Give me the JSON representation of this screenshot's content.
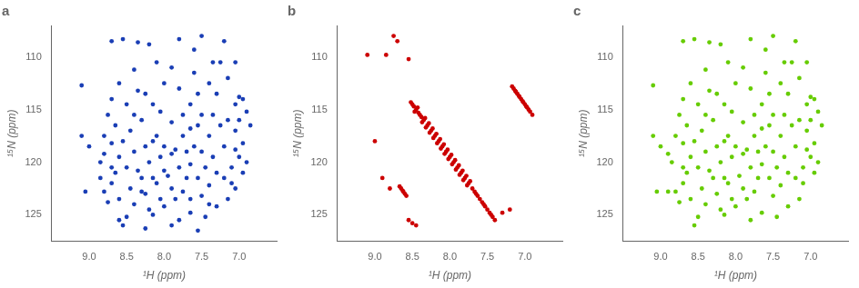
{
  "chart_data": [
    {
      "type": "scatter",
      "title": "a",
      "x_label": "¹H (ppm)",
      "y_label": "¹⁵N (ppm)",
      "color": "#1a3eb5",
      "marker": "circle",
      "grid": false,
      "xlim": [
        9.5,
        6.5
      ],
      "ylim": [
        127.5,
        107.0
      ],
      "xticks": [
        {
          "value": 9.0,
          "label": "9.0"
        },
        8.5,
        {
          "value": 8.0,
          "label": "8.0"
        },
        7.5,
        {
          "value": 7.0,
          "label": "7.0"
        }
      ],
      "yticks": [
        110,
        115,
        120,
        125
      ],
      "x": [
        9.1,
        9.1,
        9.05,
        9.0,
        8.85,
        8.85,
        8.8,
        8.8,
        8.8,
        8.75,
        8.75,
        8.7,
        8.7,
        8.7,
        8.7,
        8.7,
        8.65,
        8.65,
        8.6,
        8.6,
        8.6,
        8.6,
        8.55,
        8.55,
        8.55,
        8.5,
        8.5,
        8.5,
        8.45,
        8.45,
        8.4,
        8.4,
        8.4,
        8.4,
        8.35,
        8.35,
        8.35,
        8.3,
        8.3,
        8.3,
        8.25,
        8.25,
        8.25,
        8.25,
        8.2,
        8.2,
        8.2,
        8.15,
        8.15,
        8.15,
        8.15,
        8.1,
        8.1,
        8.1,
        8.05,
        8.05,
        8.05,
        8.0,
        8.0,
        8.0,
        8.0,
        7.95,
        7.9,
        7.9,
        7.9,
        7.9,
        7.9,
        7.85,
        7.85,
        7.8,
        7.8,
        7.8,
        7.8,
        7.75,
        7.75,
        7.75,
        7.7,
        7.7,
        7.65,
        7.65,
        7.65,
        7.65,
        7.65,
        7.6,
        7.6,
        7.6,
        7.55,
        7.55,
        7.55,
        7.55,
        7.5,
        7.5,
        7.5,
        7.5,
        7.45,
        7.45,
        7.4,
        7.4,
        7.4,
        7.4,
        7.35,
        7.35,
        7.35,
        7.3,
        7.3,
        7.3,
        7.25,
        7.25,
        7.2,
        7.2,
        7.2,
        7.15,
        7.15,
        7.15,
        7.1,
        7.1,
        7.05,
        7.05,
        7.05,
        7.05,
        7.05,
        7.0,
        7.0,
        7.0,
        6.95,
        6.95,
        6.95,
        6.9,
        6.9,
        6.85
      ],
      "values": [
        112.7,
        117.5,
        122.8,
        118.5,
        120.0,
        121.5,
        117.5,
        119.2,
        122.8,
        115.5,
        123.8,
        108.5,
        114.0,
        118.2,
        120.5,
        122.0,
        116.5,
        121.0,
        112.5,
        119.5,
        123.5,
        125.5,
        108.3,
        118.0,
        126.0,
        114.5,
        120.5,
        125.2,
        117.0,
        122.5,
        111.2,
        115.5,
        119.0,
        124.0,
        108.6,
        113.2,
        120.8,
        116.0,
        121.5,
        122.8,
        113.5,
        118.5,
        123.0,
        126.3,
        108.8,
        120.0,
        124.5,
        114.5,
        118.0,
        121.5,
        125.0,
        110.5,
        117.5,
        122.0,
        115.2,
        119.5,
        123.5,
        112.5,
        118.5,
        120.8,
        124.2,
        121.3,
        111.0,
        116.2,
        119.2,
        122.5,
        126.0,
        118.8,
        123.5,
        108.3,
        113.0,
        120.5,
        125.5,
        115.5,
        117.5,
        122.8,
        119.0,
        121.5,
        114.5,
        116.8,
        120.2,
        123.5,
        124.8,
        109.3,
        111.5,
        118.5,
        113.5,
        116.5,
        121.5,
        126.5,
        108.0,
        115.5,
        119.0,
        123.2,
        120.5,
        125.2,
        112.5,
        117.5,
        122.2,
        124.0,
        115.5,
        110.5,
        119.5,
        113.5,
        121.0,
        124.2,
        110.5,
        116.5,
        108.5,
        118.5,
        121.5,
        112.0,
        116.0,
        123.5,
        120.5,
        122.0,
        110.5,
        114.5,
        117.0,
        118.8,
        122.5,
        113.8,
        116.0,
        119.5,
        114.0,
        118.2,
        121.0,
        115.2,
        120.0,
        116.5
      ]
    },
    {
      "type": "scatter",
      "title": "b",
      "x_label": "¹H (ppm)",
      "y_label": "¹⁵N (ppm)",
      "color": "#cc0000",
      "marker": "circle",
      "grid": false,
      "xlim": [
        9.5,
        6.5
      ],
      "ylim": [
        127.5,
        107.0
      ],
      "xticks": [
        {
          "value": 9.0,
          "label": "9.0"
        },
        8.5,
        {
          "value": 8.0,
          "label": "8.0"
        },
        7.5,
        {
          "value": 7.0,
          "label": "7.0"
        }
      ],
      "yticks": [
        110,
        115,
        120,
        125
      ],
      "x": [
        9.1,
        8.85,
        8.7,
        8.55,
        8.5,
        8.48,
        8.52,
        8.45,
        8.47,
        8.43,
        8.4,
        8.38,
        8.42,
        8.35,
        8.37,
        8.33,
        8.3,
        8.32,
        8.28,
        8.25,
        8.27,
        8.23,
        8.2,
        8.22,
        8.18,
        8.15,
        8.17,
        8.13,
        8.1,
        8.12,
        8.08,
        8.05,
        8.07,
        8.03,
        8.0,
        8.02,
        7.98,
        7.95,
        7.97,
        7.93,
        7.9,
        7.92,
        7.88,
        7.85,
        7.87,
        7.83,
        7.8,
        7.82,
        7.78,
        7.75,
        7.77,
        7.73,
        7.7,
        7.65,
        7.63,
        7.67,
        7.6,
        7.55,
        7.53,
        7.57,
        7.5,
        7.45,
        7.43,
        7.47,
        7.4,
        7.1,
        7.08,
        7.12,
        7.05,
        7.03,
        7.07,
        7.0,
        6.98,
        7.02,
        6.95,
        6.93,
        6.97,
        6.9,
        7.15,
        7.13,
        7.17,
        8.75,
        8.65,
        8.63,
        8.67,
        8.6,
        8.58,
        8.62,
        8.55,
        8.5,
        8.45,
        8.9,
        9.0,
        8.8,
        7.2,
        7.3
      ],
      "values": [
        109.8,
        109.8,
        108.5,
        110.2,
        114.5,
        114.7,
        114.3,
        115.0,
        115.2,
        114.8,
        115.5,
        115.7,
        115.3,
        116.0,
        116.2,
        115.8,
        116.5,
        116.7,
        116.3,
        117.0,
        117.2,
        116.8,
        117.5,
        117.7,
        117.3,
        118.0,
        118.2,
        117.8,
        118.5,
        118.7,
        118.3,
        119.0,
        119.2,
        118.8,
        119.5,
        119.7,
        119.3,
        120.0,
        120.2,
        119.8,
        120.5,
        120.7,
        120.3,
        121.0,
        121.2,
        120.8,
        121.5,
        121.7,
        121.3,
        122.0,
        122.2,
        121.8,
        122.5,
        123.0,
        123.2,
        122.8,
        123.5,
        124.0,
        124.2,
        123.8,
        124.5,
        125.0,
        125.2,
        124.8,
        125.5,
        113.5,
        113.7,
        113.3,
        114.0,
        114.2,
        113.8,
        114.5,
        114.7,
        114.3,
        115.0,
        115.2,
        114.8,
        115.5,
        113.0,
        113.2,
        112.8,
        108.0,
        122.5,
        122.7,
        122.3,
        123.0,
        123.2,
        122.8,
        125.5,
        125.8,
        126.0,
        121.5,
        118.0,
        122.5,
        124.5,
        124.8
      ]
    },
    {
      "type": "scatter",
      "title": "c",
      "x_label": "¹H (ppm)",
      "y_label": "¹⁵N (ppm)",
      "color": "#66cc00",
      "marker": "circle",
      "grid": false,
      "xlim": [
        9.5,
        6.5
      ],
      "ylim": [
        127.5,
        107.0
      ],
      "xticks": [
        {
          "value": 9.0,
          "label": "9.0"
        },
        8.5,
        {
          "value": 8.0,
          "label": "8.0"
        },
        7.5,
        {
          "value": 7.0,
          "label": "7.0"
        }
      ],
      "yticks": [
        110,
        115,
        120,
        125
      ],
      "x": [
        9.1,
        9.05,
        9.0,
        8.85,
        8.8,
        8.8,
        8.75,
        8.75,
        8.7,
        8.7,
        8.7,
        8.7,
        8.6,
        8.6,
        8.6,
        8.55,
        8.55,
        8.5,
        8.5,
        8.5,
        8.45,
        8.45,
        8.4,
        8.4,
        8.4,
        8.4,
        8.35,
        8.35,
        8.35,
        8.3,
        8.3,
        8.25,
        8.25,
        8.25,
        8.2,
        8.2,
        8.2,
        8.15,
        8.15,
        8.15,
        8.15,
        8.1,
        8.1,
        8.1,
        8.05,
        8.05,
        8.05,
        8.0,
        8.0,
        8.0,
        7.9,
        7.9,
        7.9,
        7.9,
        7.85,
        7.85,
        7.8,
        7.8,
        7.8,
        7.8,
        7.75,
        7.75,
        7.75,
        7.7,
        7.7,
        7.65,
        7.65,
        7.65,
        7.65,
        7.6,
        7.6,
        7.6,
        7.55,
        7.55,
        7.55,
        7.5,
        7.5,
        7.5,
        7.5,
        7.45,
        7.45,
        7.4,
        7.4,
        7.4,
        7.35,
        7.35,
        7.35,
        7.3,
        7.3,
        7.3,
        7.25,
        7.25,
        7.2,
        7.2,
        7.2,
        7.15,
        7.15,
        7.15,
        7.1,
        7.1,
        7.05,
        7.05,
        7.05,
        7.05,
        7.0,
        7.0,
        7.0,
        6.95,
        6.95,
        6.95,
        6.9,
        6.9,
        6.85,
        8.65,
        8.65,
        8.9,
        8.9,
        9.1,
        7.95,
        8.7,
        8.55
      ],
      "values": [
        112.7,
        122.8,
        118.5,
        120.0,
        117.5,
        122.8,
        115.5,
        123.8,
        108.5,
        114.0,
        118.2,
        120.5,
        112.5,
        119.5,
        123.5,
        108.3,
        118.0,
        114.5,
        120.5,
        125.2,
        117.0,
        122.5,
        111.2,
        115.5,
        119.0,
        124.0,
        108.6,
        113.2,
        120.8,
        116.0,
        121.5,
        113.5,
        118.5,
        123.0,
        108.8,
        120.0,
        124.5,
        114.5,
        118.0,
        121.5,
        125.0,
        110.5,
        117.5,
        122.0,
        115.2,
        119.5,
        123.5,
        112.5,
        118.5,
        124.2,
        111.0,
        116.2,
        119.2,
        122.5,
        118.8,
        123.5,
        108.3,
        113.0,
        120.5,
        125.5,
        115.5,
        117.5,
        122.8,
        119.0,
        121.5,
        114.5,
        116.8,
        120.2,
        124.8,
        109.3,
        111.5,
        118.5,
        113.5,
        116.5,
        121.5,
        108.0,
        115.5,
        119.0,
        123.2,
        120.5,
        125.2,
        112.5,
        117.5,
        122.2,
        115.5,
        110.5,
        119.5,
        113.5,
        121.0,
        124.2,
        110.5,
        116.5,
        108.5,
        118.5,
        121.5,
        112.0,
        116.0,
        123.5,
        120.5,
        122.0,
        110.5,
        114.5,
        117.0,
        118.8,
        113.8,
        116.0,
        119.5,
        114.0,
        118.2,
        121.0,
        115.2,
        120.0,
        116.5,
        116.5,
        121.0,
        119.2,
        122.8,
        117.5,
        121.3,
        122.0,
        126.0
      ]
    }
  ]
}
